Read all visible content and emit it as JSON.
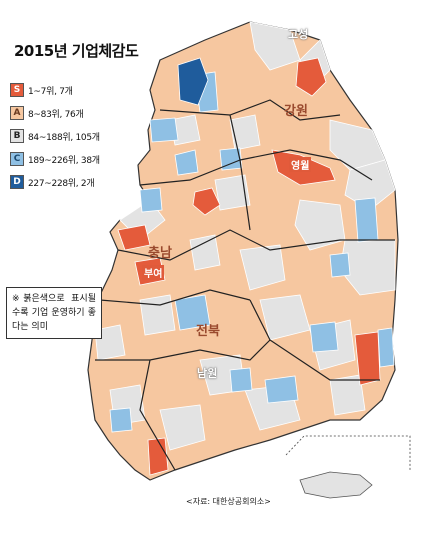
{
  "title": "2015년 기업체감도",
  "legend": [
    {
      "grade": "S",
      "text": "1~7위, 7개",
      "color": "#e45b3b",
      "text_color": "#ffffff"
    },
    {
      "grade": "A",
      "text": "8~83위, 76개",
      "color": "#f6c7a0",
      "text_color": "#6a3a20"
    },
    {
      "grade": "B",
      "text": "84~188위, 105개",
      "color": "#e3e3e3",
      "text_color": "#222222"
    },
    {
      "grade": "C",
      "text": "189~226위, 38개",
      "color": "#8fc0e4",
      "text_color": "#1d4a70"
    },
    {
      "grade": "D",
      "text": "227~228위, 2개",
      "color": "#1f5c9c",
      "text_color": "#ffffff"
    }
  ],
  "note": "※붉은색으로 표시될수록 기업 운영하기 좋다는 의미",
  "labels": {
    "goseong": "고성",
    "gangwon": "강원",
    "yeongwol": "영월",
    "chungnam": "충남",
    "buyeo": "부여",
    "jeonbuk": "전북",
    "namwon": "남원"
  },
  "source": "<자료: 대한상공회의소>",
  "colors": {
    "border_province": "#222222",
    "border_district": "#ffffff",
    "sea": "#ffffff"
  }
}
